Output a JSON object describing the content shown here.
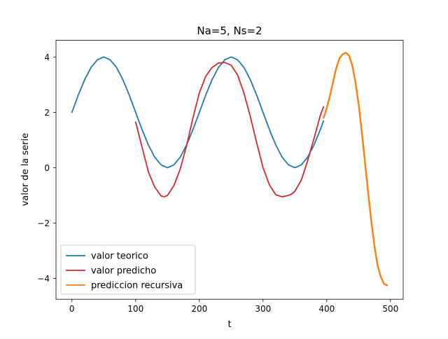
{
  "chart_data": {
    "type": "line",
    "title": "Na=5, Ns=2",
    "xlabel": "t",
    "ylabel": "valor de la serie",
    "xlim": [
      -25,
      520
    ],
    "ylim": [
      -4.75,
      4.6
    ],
    "x_ticks": [
      0,
      100,
      200,
      300,
      400,
      500
    ],
    "y_ticks": [
      -4,
      -2,
      0,
      2,
      4
    ],
    "x_tick_labels": [
      "0",
      "100",
      "200",
      "300",
      "400",
      "500"
    ],
    "y_tick_labels": [
      "−4",
      "−2",
      "0",
      "2",
      "4"
    ],
    "legend_position": "lower-left",
    "grid": false,
    "series": [
      {
        "name": "valor teorico",
        "color": "#1f77b4",
        "x": [
          0,
          10,
          20,
          30,
          40,
          50,
          60,
          70,
          80,
          90,
          100,
          110,
          120,
          130,
          140,
          150,
          160,
          170,
          180,
          190,
          200,
          210,
          220,
          230,
          240,
          250,
          260,
          270,
          280,
          290,
          300,
          310,
          320,
          330,
          340,
          350,
          360,
          370,
          380,
          390,
          395
        ],
        "y": [
          2.0,
          2.62,
          3.18,
          3.62,
          3.9,
          4.0,
          3.9,
          3.62,
          3.18,
          2.62,
          2.0,
          1.38,
          0.82,
          0.38,
          0.1,
          0.0,
          0.1,
          0.38,
          0.82,
          1.38,
          2.0,
          2.62,
          3.18,
          3.62,
          3.9,
          4.0,
          3.9,
          3.62,
          3.18,
          2.62,
          2.0,
          1.38,
          0.82,
          0.38,
          0.1,
          0.0,
          0.1,
          0.38,
          0.82,
          1.38,
          1.69
        ]
      },
      {
        "name": "valor predicho",
        "color": "#d62728",
        "x": [
          100,
          110,
          120,
          130,
          140,
          145,
          150,
          160,
          170,
          180,
          190,
          200,
          210,
          220,
          230,
          240,
          250,
          260,
          270,
          280,
          290,
          300,
          310,
          320,
          330,
          340,
          345,
          350,
          360,
          370,
          380,
          390,
          395
        ],
        "y": [
          1.65,
          0.75,
          -0.15,
          -0.7,
          -1.02,
          -1.05,
          -1.0,
          -0.65,
          -0.05,
          0.8,
          1.8,
          2.7,
          3.3,
          3.62,
          3.78,
          3.8,
          3.7,
          3.35,
          2.7,
          1.85,
          0.9,
          0.0,
          -0.62,
          -0.98,
          -1.05,
          -1.0,
          -0.95,
          -0.85,
          -0.45,
          0.25,
          1.05,
          1.9,
          2.2
        ]
      },
      {
        "name": "prediccion recursiva",
        "color": "#ff7f0e",
        "x": [
          395,
          400,
          405,
          410,
          415,
          420,
          425,
          430,
          435,
          440,
          445,
          450,
          455,
          460,
          465,
          470,
          475,
          480,
          485,
          490,
          495
        ],
        "y": [
          1.8,
          2.15,
          2.6,
          3.1,
          3.6,
          3.95,
          4.1,
          4.15,
          4.05,
          3.7,
          3.1,
          2.3,
          1.3,
          0.2,
          -0.9,
          -1.95,
          -2.85,
          -3.55,
          -3.95,
          -4.2,
          -4.25
        ]
      }
    ]
  }
}
